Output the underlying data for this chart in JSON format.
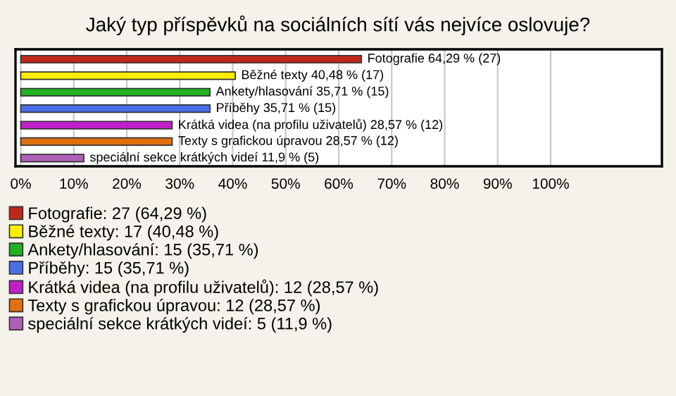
{
  "chart_data": {
    "type": "bar",
    "orientation": "horizontal",
    "title": "Jaký typ příspěvků na sociálních sítí vás nejvíce oslovuje?",
    "categories": [
      null,
      null,
      null,
      null,
      null,
      null,
      null
    ],
    "series": [
      {
        "name": "Fotografie: 27 (64,29 %)",
        "color": "#c0281c",
        "values": [
          64.29,
          null,
          null,
          null,
          null,
          null,
          null
        ],
        "value_labels": [
          "Fotografie 64,29 % (27)",
          null,
          null,
          null,
          null,
          null,
          null
        ]
      },
      {
        "name": "Běžné texty: 17 (40,48 %)",
        "color": "#ffee00",
        "values": [
          null,
          40.48,
          null,
          null,
          null,
          null,
          null
        ],
        "value_labels": [
          null,
          "Běžné texty 40,48 % (17)",
          null,
          null,
          null,
          null,
          null
        ]
      },
      {
        "name": "Ankety/hlasování: 15 (35,71 %)",
        "color": "#20b020",
        "values": [
          null,
          null,
          35.71,
          null,
          null,
          null,
          null
        ],
        "value_labels": [
          null,
          null,
          "Ankety/hlasování 35,71 % (15)",
          null,
          null,
          null,
          null
        ]
      },
      {
        "name": "Příběhy: 15 (35,71 %)",
        "color": "#4a6ee8",
        "values": [
          null,
          null,
          null,
          35.71,
          null,
          null,
          null
        ],
        "value_labels": [
          null,
          null,
          null,
          "Příběhy 35,71 % (15)",
          null,
          null,
          null
        ]
      },
      {
        "name": "Krátká videa (na profilu uživatelů): 12 (28,57 %)",
        "color": "#c020c8",
        "values": [
          null,
          null,
          null,
          null,
          28.57,
          null,
          null
        ],
        "value_labels": [
          null,
          null,
          null,
          null,
          "Krátká videa (na profilu uživatelů) 28,57 % (12)",
          null,
          null
        ]
      },
      {
        "name": "Texty s grafickou úpravou: 12 (28,57 %)",
        "color": "#e07010",
        "values": [
          null,
          null,
          null,
          null,
          null,
          28.57,
          null
        ],
        "value_labels": [
          null,
          null,
          null,
          null,
          null,
          "Texty s grafickou úpravou 28,57 % (12)",
          null
        ]
      },
      {
        "name": "speciální sekce krátkých videí: 5 (11,9 %)",
        "color": "#b060b8",
        "values": [
          null,
          null,
          null,
          null,
          null,
          null,
          11.9
        ],
        "value_labels": [
          null,
          null,
          null,
          null,
          null,
          null,
          "speciální sekce krátkých videí 11,9 % (5)"
        ]
      }
    ],
    "xlim": [
      -1,
      121
    ],
    "xticks": [
      {
        "value": 0,
        "label": "0%"
      },
      {
        "value": 10,
        "label": "10%"
      },
      {
        "value": 20,
        "label": "20%"
      },
      {
        "value": 30,
        "label": "30%"
      },
      {
        "value": 40,
        "label": "40%"
      },
      {
        "value": 50,
        "label": "50%"
      },
      {
        "value": 60,
        "label": "60%"
      },
      {
        "value": 70,
        "label": "70%"
      },
      {
        "value": 80,
        "label": "80%"
      },
      {
        "value": 90,
        "label": "90%"
      },
      {
        "value": 100,
        "label": "100%"
      }
    ],
    "grid": "x",
    "legend": "bottom"
  }
}
